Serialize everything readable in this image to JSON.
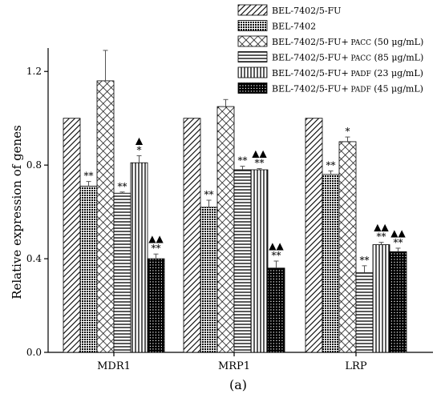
{
  "chart_data": {
    "type": "bar",
    "ylabel": "Relative expression of genes",
    "panel_label": "(a)",
    "categories": [
      "MDR1",
      "MRP1",
      "LRP"
    ],
    "ylim": [
      0.0,
      1.3
    ],
    "yticks": [
      0.0,
      0.4,
      0.8,
      1.2
    ],
    "ytick_labels": [
      "0.0",
      "0.4",
      "0.8",
      "1.2"
    ],
    "legend_position": "top-right",
    "series": [
      {
        "name": "BEL-7402/5-FU",
        "pattern": "diag-fwd",
        "values": [
          1.0,
          1.0,
          1.0
        ],
        "errors": [
          0,
          0,
          0
        ],
        "sig_bottom": [
          "",
          "",
          ""
        ],
        "sig_top": [
          "",
          "",
          ""
        ]
      },
      {
        "name": "BEL-7402",
        "pattern": "dense",
        "values": [
          0.71,
          0.62,
          0.76
        ],
        "errors": [
          0.02,
          0.03,
          0.015
        ],
        "sig_bottom": [
          "**",
          "**",
          "**"
        ],
        "sig_top": [
          "",
          "",
          ""
        ]
      },
      {
        "name_prefix": "BEL-7402/5-FU+",
        "name_drug": "PACC",
        "name_conc": "(50 μg/mL)",
        "pattern": "cross",
        "values": [
          1.16,
          1.05,
          0.9
        ],
        "errors": [
          0.13,
          0.03,
          0.02
        ],
        "sig_bottom": [
          "",
          "",
          "*"
        ],
        "sig_top": [
          "",
          "",
          ""
        ]
      },
      {
        "name_prefix": "BEL-7402/5-FU+",
        "name_drug": "PACC",
        "name_conc": "(85 μg/mL)",
        "pattern": "hlines",
        "values": [
          0.68,
          0.78,
          0.34
        ],
        "errors": [
          0.005,
          0.015,
          0.03
        ],
        "sig_bottom": [
          "**",
          "**",
          "**"
        ],
        "sig_top": [
          "",
          "",
          ""
        ]
      },
      {
        "name_prefix": "BEL-7402/5-FU+",
        "name_drug": "PADF",
        "name_conc": "(23 μg/mL)",
        "pattern": "vlines",
        "values": [
          0.81,
          0.78,
          0.46
        ],
        "errors": [
          0.03,
          0.005,
          0.01
        ],
        "sig_bottom": [
          "*",
          "**",
          "**"
        ],
        "sig_top": [
          "▲",
          "▲▲",
          "▲▲"
        ]
      },
      {
        "name_prefix": "BEL-7402/5-FU+",
        "name_drug": "PADF",
        "name_conc": "(45 μg/mL)",
        "pattern": "grid",
        "values": [
          0.4,
          0.36,
          0.43
        ],
        "errors": [
          0.02,
          0.03,
          0.015
        ],
        "sig_bottom": [
          "**",
          "**",
          "**"
        ],
        "sig_top": [
          "▲▲",
          "▲▲",
          "▲▲"
        ]
      }
    ]
  }
}
